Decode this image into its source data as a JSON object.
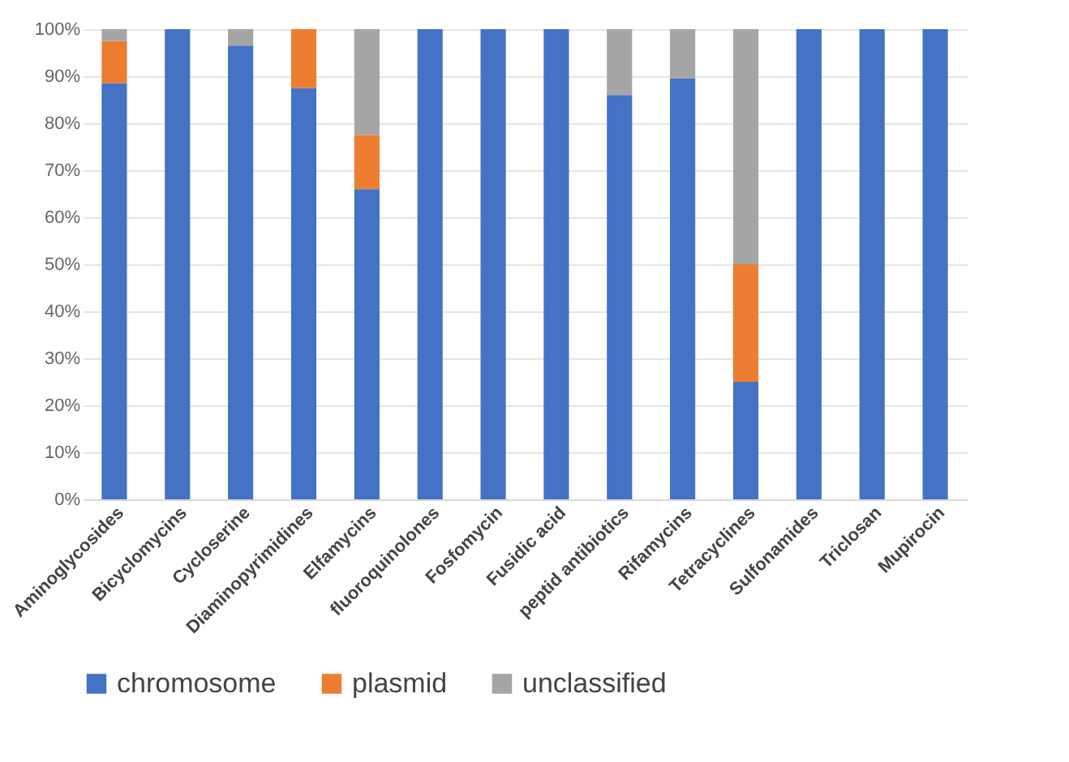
{
  "chart_data": {
    "type": "bar",
    "stacked": true,
    "categories": [
      "Aminoglycosides",
      "Bicyclomycins",
      "Cycloserine",
      "Diaminopyrimidines",
      "Elfamycins",
      "fluoroquinolones",
      "Fosfomycin",
      "Fusidic acid",
      "peptid antibiotics",
      "Rifamycins",
      "Tetracyclines",
      "Sulfonamides",
      "Triclosan",
      "Mupirocin"
    ],
    "series": [
      {
        "name": "chromosome",
        "color": "#4472c4",
        "values": [
          88.5,
          100,
          96.5,
          87.5,
          66,
          100,
          100,
          100,
          86,
          89.5,
          25,
          100,
          100,
          100
        ]
      },
      {
        "name": "plasmid",
        "color": "#ed7d31",
        "values": [
          9,
          0,
          0,
          12.5,
          11.5,
          0,
          0,
          0,
          0,
          0,
          25,
          0,
          0,
          0
        ]
      },
      {
        "name": "unclassified",
        "color": "#a5a5a5",
        "values": [
          2.5,
          0,
          3.5,
          0,
          22.5,
          0,
          0,
          0,
          14,
          10.5,
          50,
          0,
          0,
          0
        ]
      }
    ],
    "ylim": [
      0,
      100
    ],
    "yticks": [
      {
        "value": 0,
        "label": "0%"
      },
      {
        "value": 10,
        "label": "10%"
      },
      {
        "value": 20,
        "label": "20%"
      },
      {
        "value": 30,
        "label": "30%"
      },
      {
        "value": 40,
        "label": "40%"
      },
      {
        "value": 50,
        "label": "50%"
      },
      {
        "value": 60,
        "label": "60%"
      },
      {
        "value": 70,
        "label": "70%"
      },
      {
        "value": 80,
        "label": "80%"
      },
      {
        "value": 90,
        "label": "90%"
      },
      {
        "value": 100,
        "label": "100%"
      }
    ],
    "grid": "y",
    "legend": "bottom"
  }
}
